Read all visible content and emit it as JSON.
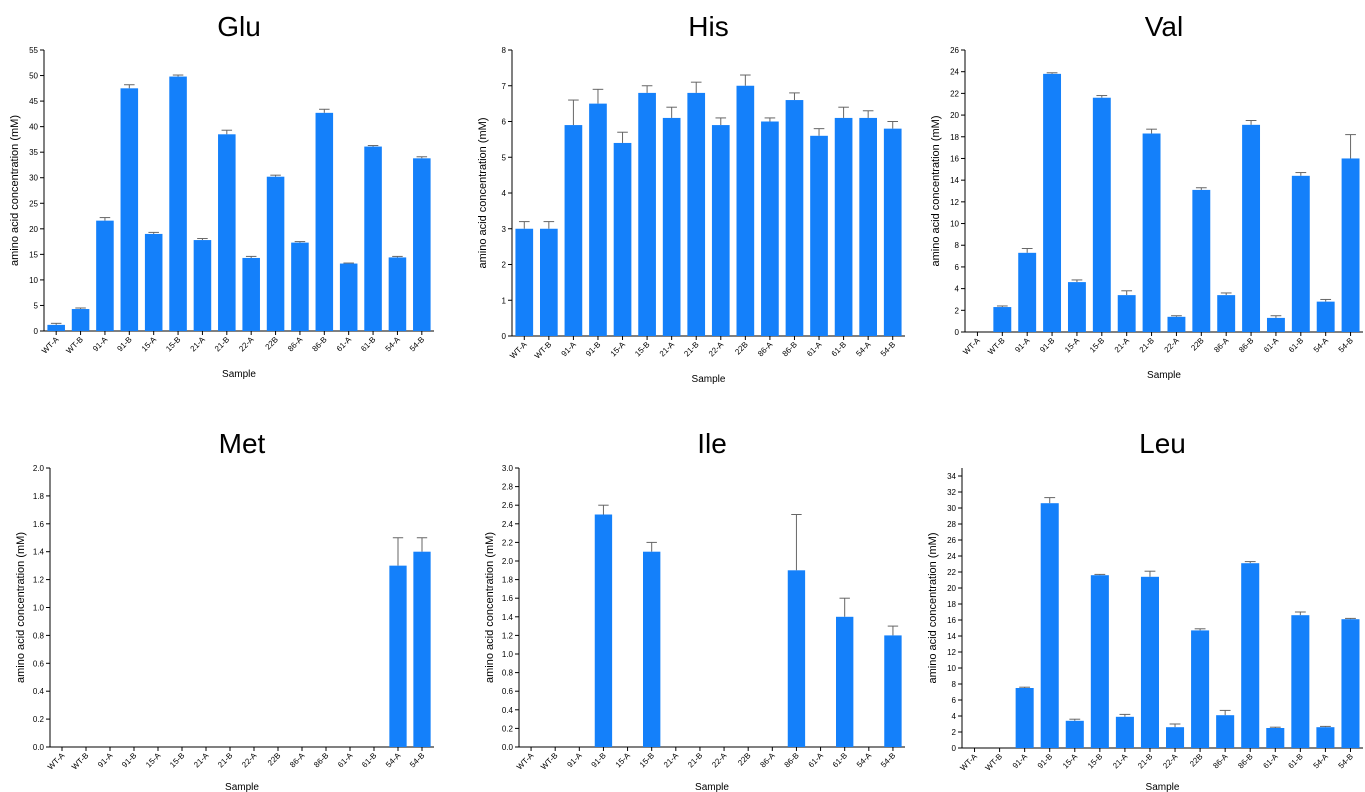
{
  "chart_data": [
    {
      "type": "bar",
      "title": "Glu",
      "xlabel": "Sample",
      "ylabel": "amino acid concentration (mM)",
      "ylim": [
        0,
        55
      ],
      "ytick_step": 5,
      "ytick_decimals": 0,
      "categories": [
        "WT-A",
        "WT-B",
        "91-A",
        "91-B",
        "15-A",
        "15-B",
        "21-A",
        "21-B",
        "22-A",
        "22B",
        "86-A",
        "86-B",
        "61-A",
        "61-B",
        "54-A",
        "54-B"
      ],
      "values": [
        1.2,
        4.3,
        21.6,
        47.5,
        19.0,
        49.8,
        17.8,
        38.5,
        14.3,
        30.2,
        17.3,
        42.7,
        13.2,
        36.1,
        14.4,
        33.8
      ],
      "errors": [
        0.3,
        0.2,
        0.6,
        0.7,
        0.3,
        0.3,
        0.3,
        0.8,
        0.3,
        0.3,
        0.2,
        0.7,
        0.1,
        0.2,
        0.2,
        0.3
      ],
      "bar_color": "#1480fa"
    },
    {
      "type": "bar",
      "title": "His",
      "xlabel": "Sample",
      "ylabel": "amino acid concentration (mM)",
      "ylim": [
        0,
        8
      ],
      "ytick_step": 1,
      "ytick_decimals": 0,
      "categories": [
        "WT-A",
        "WT-B",
        "91-A",
        "91-B",
        "15-A",
        "15-B",
        "21-A",
        "21-B",
        "22-A",
        "22B",
        "86-A",
        "86-B",
        "61-A",
        "61-B",
        "54-A",
        "54-B"
      ],
      "values": [
        3.0,
        3.0,
        5.9,
        6.5,
        5.4,
        6.8,
        6.1,
        6.8,
        5.9,
        7.0,
        6.0,
        6.6,
        5.6,
        6.1,
        6.1,
        5.8
      ],
      "errors": [
        0.2,
        0.2,
        0.7,
        0.4,
        0.3,
        0.2,
        0.3,
        0.3,
        0.2,
        0.3,
        0.1,
        0.2,
        0.2,
        0.3,
        0.2,
        0.2
      ],
      "bar_color": "#1480fa"
    },
    {
      "type": "bar",
      "title": "Val",
      "xlabel": "Sample",
      "ylabel": "amino acid concentration (mM)",
      "ylim": [
        0,
        26
      ],
      "ytick_step": 2,
      "ytick_decimals": 0,
      "categories": [
        "WT-A",
        "WT-B",
        "91-A",
        "91-B",
        "15-A",
        "15-B",
        "21-A",
        "21-B",
        "22-A",
        "22B",
        "86-A",
        "86-B",
        "61-A",
        "61-B",
        "54-A",
        "54-B"
      ],
      "values": [
        0.0,
        2.3,
        7.3,
        23.8,
        4.6,
        21.6,
        3.4,
        18.3,
        1.4,
        13.1,
        3.4,
        19.1,
        1.3,
        14.4,
        2.8,
        16.0
      ],
      "errors": [
        0,
        0.1,
        0.4,
        0.1,
        0.2,
        0.2,
        0.4,
        0.4,
        0.1,
        0.2,
        0.2,
        0.4,
        0.2,
        0.3,
        0.2,
        2.2
      ],
      "bar_color": "#1480fa"
    },
    {
      "type": "bar",
      "title": "Met",
      "xlabel": "Sample",
      "ylabel": "amino acid concentration (mM)",
      "ylim": [
        0,
        2.0
      ],
      "ytick_step": 0.2,
      "ytick_decimals": 1,
      "categories": [
        "WT-A",
        "WT-B",
        "91-A",
        "91-B",
        "15-A",
        "15-B",
        "21-A",
        "21-B",
        "22-A",
        "22B",
        "86-A",
        "86-B",
        "61-A",
        "61-B",
        "54-A",
        "54-B"
      ],
      "values": [
        0,
        0,
        0,
        0,
        0,
        0,
        0,
        0,
        0,
        0,
        0,
        0,
        0,
        0,
        1.3,
        1.4
      ],
      "errors": [
        0,
        0,
        0,
        0,
        0,
        0,
        0,
        0,
        0,
        0,
        0,
        0,
        0,
        0,
        0.2,
        0.1
      ],
      "bar_color": "#1480fa"
    },
    {
      "type": "bar",
      "title": "Ile",
      "xlabel": "Sample",
      "ylabel": "amino acid concentration (mM)",
      "ylim": [
        0,
        3.0
      ],
      "ytick_step": 0.2,
      "ytick_decimals": 1,
      "categories": [
        "WT-A",
        "WT-B",
        "91-A",
        "91-B",
        "15-A",
        "15-B",
        "21-A",
        "21-B",
        "22-A",
        "22B",
        "86-A",
        "86-B",
        "61-A",
        "61-B",
        "54-A",
        "54-B"
      ],
      "values": [
        0,
        0,
        0,
        2.5,
        0,
        2.1,
        0,
        0,
        0,
        0,
        0,
        1.9,
        0,
        1.4,
        0,
        1.2
      ],
      "errors": [
        0,
        0,
        0,
        0.1,
        0,
        0.1,
        0,
        0,
        0,
        0,
        0,
        0.6,
        0,
        0.2,
        0,
        0.1
      ],
      "bar_color": "#1480fa"
    },
    {
      "type": "bar",
      "title": "Leu",
      "xlabel": "Sample",
      "ylabel": "amino acid concentration (mM)",
      "ylim": [
        0,
        35
      ],
      "ytick_step": 2,
      "ytick_decimals": 0,
      "categories": [
        "WT-A",
        "WT-B",
        "91-A",
        "91-B",
        "15-A",
        "15-B",
        "21-A",
        "21-B",
        "22-A",
        "22B",
        "86-A",
        "86-B",
        "61-A",
        "61-B",
        "54-A",
        "54-B"
      ],
      "values": [
        0.0,
        0.0,
        7.5,
        30.6,
        3.4,
        21.6,
        3.9,
        21.4,
        2.6,
        14.7,
        4.1,
        23.1,
        2.5,
        16.6,
        2.6,
        16.1
      ],
      "errors": [
        0,
        0,
        0.1,
        0.7,
        0.2,
        0.1,
        0.3,
        0.7,
        0.4,
        0.2,
        0.6,
        0.2,
        0.1,
        0.4,
        0.1,
        0.1
      ],
      "bar_color": "#1480fa"
    }
  ]
}
